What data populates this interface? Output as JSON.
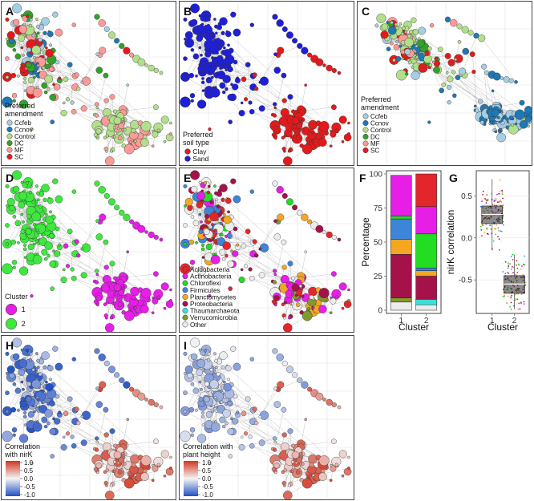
{
  "panels": {
    "A": {
      "letter": "A",
      "legend_title": [
        "Preferred",
        "amendment"
      ],
      "legend": [
        {
          "label": "Ccfeb",
          "color": "#a6cee3"
        },
        {
          "label": "Ccnov",
          "color": "#1f78b4"
        },
        {
          "label": "Control",
          "color": "#b2df8a"
        },
        {
          "label": "DC",
          "color": "#33a02c"
        },
        {
          "label": "MF",
          "color": "#fb9a99"
        },
        {
          "label": "SC",
          "color": "#e31a1c"
        }
      ]
    },
    "B": {
      "letter": "B",
      "legend_title": [
        "Preferred",
        "soil type"
      ],
      "legend": [
        {
          "label": "Clay",
          "color": "#e31a1c"
        },
        {
          "label": "Sand",
          "color": "#1f1fd6"
        }
      ]
    },
    "C": {
      "letter": "C",
      "legend_title": [
        "Preferred",
        "amendment"
      ],
      "legend": [
        {
          "label": "Ccfeb",
          "color": "#a6cee3"
        },
        {
          "label": "Ccnov",
          "color": "#1f78b4"
        },
        {
          "label": "Control",
          "color": "#b2df8a"
        },
        {
          "label": "DC",
          "color": "#33a02c"
        },
        {
          "label": "MF",
          "color": "#fb9a99"
        },
        {
          "label": "SC",
          "color": "#e31a1c"
        }
      ]
    },
    "D": {
      "letter": "D",
      "legend_title": [
        "Cluster"
      ],
      "legend": [
        {
          "label": "1",
          "color": "#e61ee6"
        },
        {
          "label": "2",
          "color": "#3ee83e"
        }
      ]
    },
    "E": {
      "letter": "E",
      "legend": [
        {
          "label": "Acidobacteria",
          "color": "#e3262b"
        },
        {
          "label": "Actinobacteria",
          "color": "#e61ee6"
        },
        {
          "label": "Chloroflexi",
          "color": "#22dd22"
        },
        {
          "label": "Firmicutes",
          "color": "#3d85d8"
        },
        {
          "label": "Planctomycetes",
          "color": "#f5a623"
        },
        {
          "label": "Proteobacteria",
          "color": "#a5124a"
        },
        {
          "label": "Thaumarchaeota",
          "color": "#38e0d8"
        },
        {
          "label": "Verrucomicrobia",
          "color": "#7f9a2d"
        },
        {
          "label": "Other",
          "color": "#ececec"
        }
      ]
    },
    "H": {
      "letter": "H",
      "legend_title": [
        "Correlation",
        "with nirK"
      ],
      "scale_ticks": [
        "1.0",
        "0.5",
        "0.0",
        "-0.5",
        "-1.0"
      ]
    },
    "I": {
      "letter": "I",
      "legend_title": [
        "Correlation with",
        "plant height"
      ],
      "scale_ticks": [
        "1.0",
        "0.5",
        "0.0",
        "-0.5",
        "-1.0"
      ]
    }
  },
  "colors": {
    "clay": "#e31a1c",
    "sand": "#1f1fd6",
    "cluster1": "#e61ee6",
    "cluster2": "#3ee83e",
    "neg": "#1f4fc4",
    "zero": "#f4f4f4",
    "pos": "#d2341f",
    "edge": "#b8b8b8",
    "grid": "#e3e3e3",
    "frame": "#444444"
  },
  "chart_data": [
    {
      "type": "bar",
      "panel": "F",
      "stacked": true,
      "ylabel": "Percentage",
      "xlabel": "Cluster",
      "categories": [
        "1",
        "2"
      ],
      "ylim": [
        0,
        100
      ],
      "yticks": [
        0,
        25,
        50,
        75,
        100
      ],
      "series": [
        {
          "name": "Other",
          "color": "#ececec",
          "values": [
            6,
            4
          ]
        },
        {
          "name": "Verrucomicrobia",
          "color": "#7f9a2d",
          "values": [
            3,
            0
          ]
        },
        {
          "name": "Thaumarchaeota",
          "color": "#38e0d8",
          "values": [
            0,
            4
          ]
        },
        {
          "name": "Proteobacteria",
          "color": "#a5124a",
          "values": [
            32,
            17
          ]
        },
        {
          "name": "Planctomycetes",
          "color": "#f5a623",
          "values": [
            11,
            4
          ]
        },
        {
          "name": "Firmicutes",
          "color": "#3d85d8",
          "values": [
            15,
            2
          ]
        },
        {
          "name": "Chloroflexi",
          "color": "#22dd22",
          "values": [
            2,
            25
          ]
        },
        {
          "name": "Actinobacteria",
          "color": "#e61ee6",
          "values": [
            30,
            20
          ]
        },
        {
          "name": "Acidobacteria",
          "color": "#e3262b",
          "values": [
            0,
            24
          ]
        }
      ]
    },
    {
      "type": "box",
      "panel": "G",
      "ylabel": "nirK correlation",
      "xlabel": "Cluster",
      "categories": [
        "1",
        "2"
      ],
      "ylim": [
        -0.9,
        0.8
      ],
      "yticks": [
        -0.5,
        0.0,
        0.5
      ],
      "boxes": [
        {
          "category": "1",
          "q1": 0.17,
          "median": 0.28,
          "q3": 0.38,
          "whisker_low": -0.15,
          "whisker_high": 0.7
        },
        {
          "category": "2",
          "q1": -0.66,
          "median": -0.55,
          "q3": -0.45,
          "whisker_low": -0.85,
          "whisker_high": -0.2
        }
      ]
    }
  ]
}
